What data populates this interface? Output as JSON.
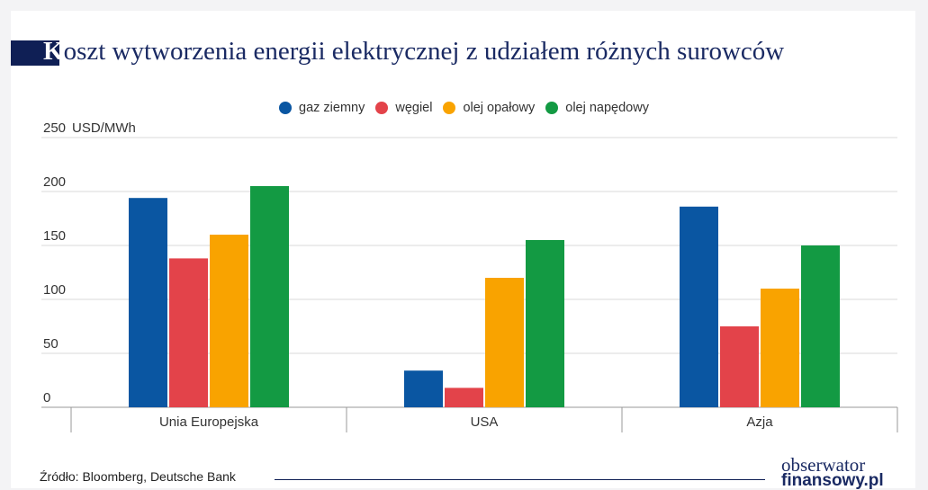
{
  "title": {
    "first_letter": "K",
    "rest": "oszt wytworzenia energii elektrycznej z udziałem różnych surowców"
  },
  "legend": [
    {
      "label": "gaz ziemny",
      "color": "#0a56a2"
    },
    {
      "label": "węgiel",
      "color": "#e3434a"
    },
    {
      "label": "olej opałowy",
      "color": "#f9a300"
    },
    {
      "label": "olej napędowy",
      "color": "#139a43"
    }
  ],
  "chart_data": {
    "type": "bar",
    "title": "Koszt wytworzenia energii elektrycznej z udziałem różnych surowców",
    "ylabel": "USD/MWh",
    "ylim": [
      0,
      250
    ],
    "yticks": [
      0,
      50,
      100,
      150,
      200,
      250
    ],
    "categories": [
      "Unia Europejska",
      "USA",
      "Azja"
    ],
    "series": [
      {
        "name": "gaz ziemny",
        "color": "#0a56a2",
        "values": [
          194,
          34,
          186
        ]
      },
      {
        "name": "węgiel",
        "color": "#e3434a",
        "values": [
          138,
          18,
          75
        ]
      },
      {
        "name": "olej opałowy",
        "color": "#f9a300",
        "values": [
          160,
          120,
          110
        ]
      },
      {
        "name": "olej napędowy",
        "color": "#139a43",
        "values": [
          205,
          155,
          150
        ]
      }
    ],
    "grid": true,
    "legend_position": "top-center"
  },
  "footer": {
    "source": "Źródło: Bloomberg, Deutsche Bank",
    "logo_line1": "obserwator",
    "logo_line2": "finansowy.pl"
  }
}
